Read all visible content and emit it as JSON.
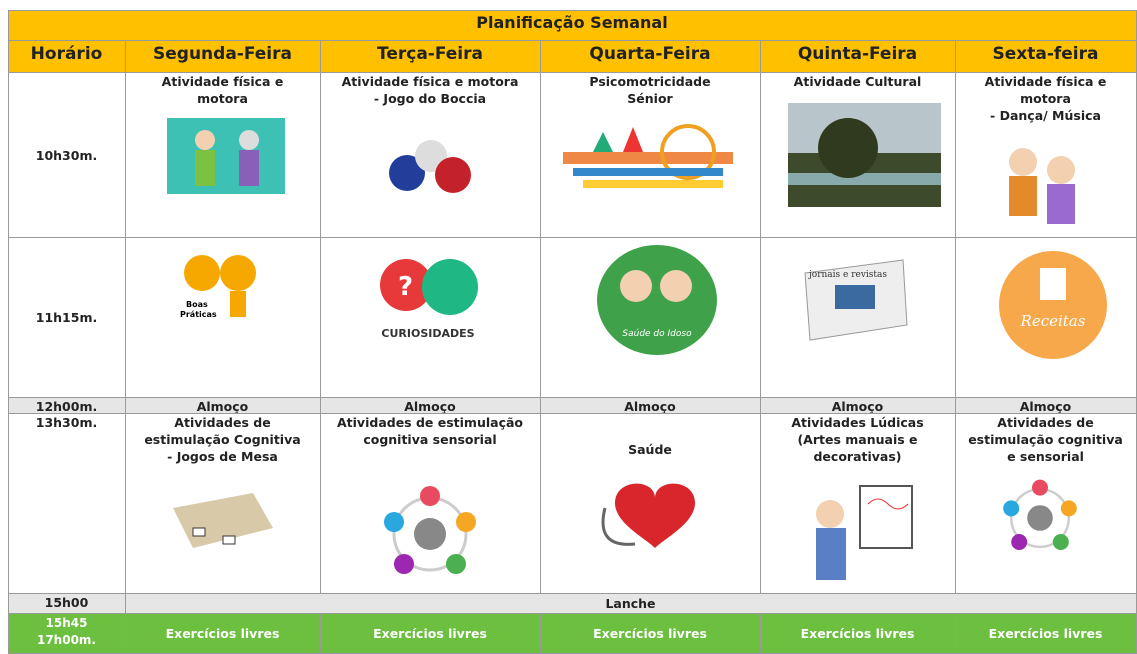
{
  "title": "Planificação Semanal",
  "header": [
    "Horário",
    "Segunda-Feira",
    "Terça-Feira",
    "Quarta-Feira",
    "Quinta-Feira",
    "Sexta-feira"
  ],
  "rows": [
    {
      "time": [
        "10h30m."
      ],
      "cells": [
        [
          "Atividade física e",
          "motora"
        ],
        [
          "Atividade física e motora",
          "- Jogo do Boccia"
        ],
        [
          "Psicomotricidade",
          "Sénior"
        ],
        [
          "Atividade Cultural"
        ],
        [
          "Atividade física e",
          "motora",
          "- Dança/ Música"
        ]
      ]
    },
    {
      "time": [
        "11h15m."
      ],
      "picture_texts": [
        [
          "Boas",
          "Práticas"
        ],
        [
          "CURIOSIDADES"
        ],
        [
          "Saúde do Idoso"
        ],
        [
          "jornais e revistas"
        ],
        [
          "Receitas"
        ]
      ]
    },
    {
      "time": [
        "12h00m."
      ],
      "cells": [
        [
          "Almoço"
        ],
        [
          "Almoço"
        ],
        [
          "Almoço"
        ],
        [
          "Almoço"
        ],
        [
          "Almoço"
        ]
      ]
    },
    {
      "time": [
        "13h30m."
      ],
      "cells": [
        [
          "Atividades de",
          "estimulação Cognitiva",
          "- Jogos de Mesa"
        ],
        [
          "Atividades de estimulação",
          "cognitiva sensorial"
        ],
        [
          "Saúde"
        ],
        [
          "Atividades Lúdicas",
          "(Artes manuais e",
          "decorativas)"
        ],
        [
          "Atividades de",
          "estimulação cognitiva",
          "e sensorial"
        ]
      ]
    },
    {
      "time": [
        "15h00"
      ],
      "span": [
        "Lanche"
      ]
    },
    {
      "time": [
        "15h45",
        "17h00m."
      ],
      "cells": [
        [
          "Exercícios livres"
        ],
        [
          "Exercícios livres"
        ],
        [
          "Exercícios livres"
        ],
        [
          "Exercícios livres"
        ],
        [
          "Exercícios livres"
        ]
      ]
    }
  ]
}
